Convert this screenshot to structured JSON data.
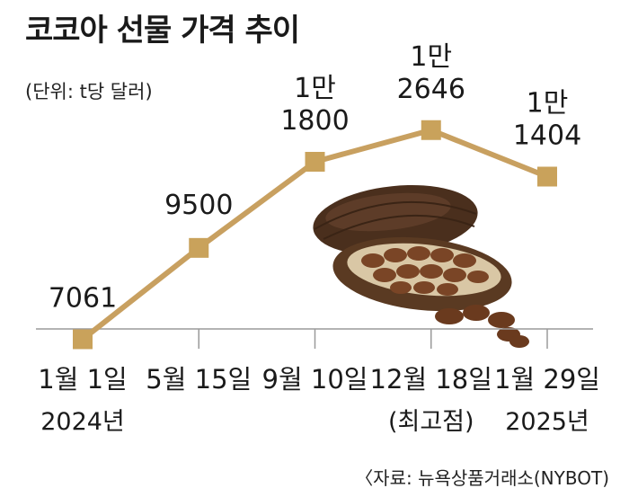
{
  "title": "코코아 선물 가격 추이",
  "unit_label": "(단위: t당 달러)",
  "source": "〈자료: 뉴욕상품거래소(NYBOT)",
  "colors": {
    "line": "#c8a060",
    "marker": "#c9a25b",
    "axis": "#9a9a9a",
    "text": "#1a1a1a"
  },
  "chart_data": {
    "type": "line",
    "title": "코코아 선물 가격 추이",
    "ylabel": "(단위: t당 달러)",
    "xlabel": "",
    "ylim": [
      7000,
      13000
    ],
    "grid": false,
    "legend": "none",
    "categories": [
      "1월 1일 2024년",
      "5월 15일",
      "9월 10일",
      "12월 18일 (최고점)",
      "1월 29일 2025년"
    ],
    "tick_labels": [
      {
        "line1": "1월 1일",
        "line2": "2024년"
      },
      {
        "line1": "5월 15일",
        "line2": ""
      },
      {
        "line1": "9월 10일",
        "line2": ""
      },
      {
        "line1": "12월 18일",
        "line2": "(최고점)"
      },
      {
        "line1": "1월 29일",
        "line2": "2025년"
      }
    ],
    "series": [
      {
        "values": [
          7061,
          9500,
          11800,
          12646,
          11404
        ]
      }
    ],
    "data_labels": [
      {
        "line1": "",
        "line2": "7061"
      },
      {
        "line1": "",
        "line2": "9500"
      },
      {
        "line1": "1만",
        "line2": "1800"
      },
      {
        "line1": "1만",
        "line2": "2646"
      },
      {
        "line1": "1만",
        "line2": "1404"
      }
    ],
    "image_icon": "cocoa-pod-illustration"
  }
}
